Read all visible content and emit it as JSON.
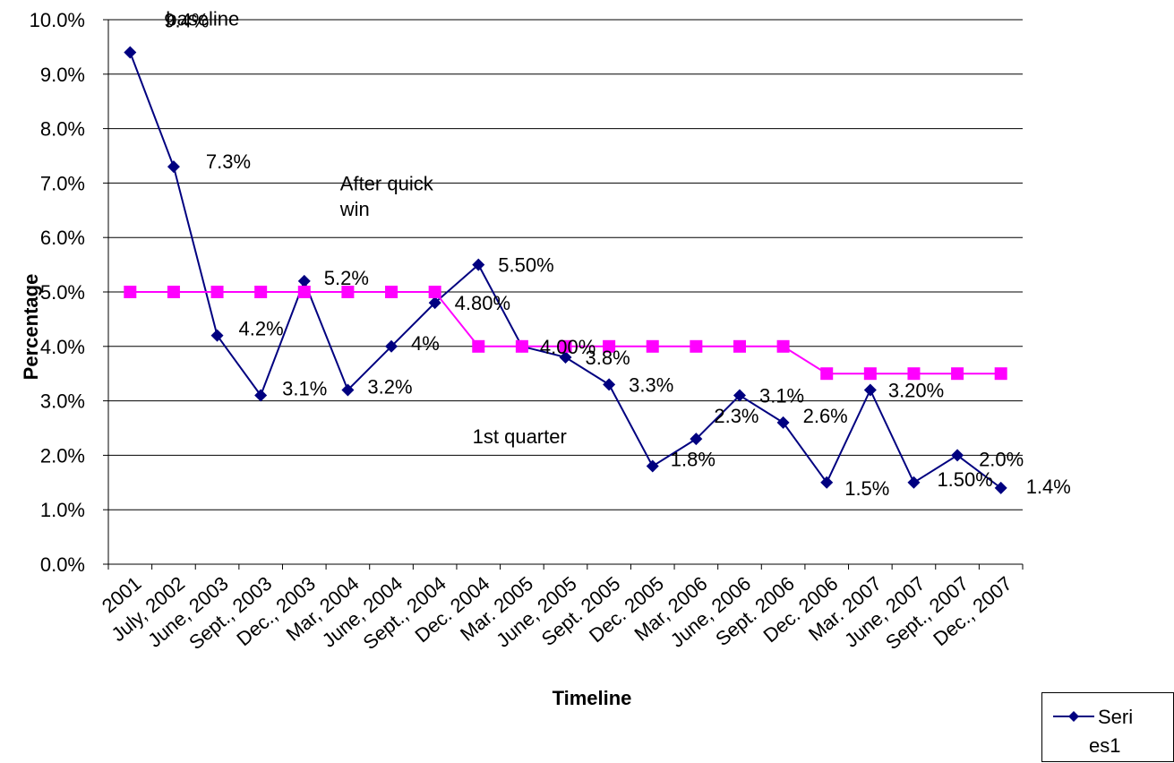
{
  "chart_data": {
    "type": "line",
    "xlabel": "Timeline",
    "ylabel": "Percentage",
    "ylim": [
      0,
      10
    ],
    "y_ticks": [
      "0.0%",
      "1.0%",
      "2.0%",
      "3.0%",
      "4.0%",
      "5.0%",
      "6.0%",
      "7.0%",
      "8.0%",
      "9.0%",
      "10.0%"
    ],
    "y_ticks_rendered": [
      "0.0%",
      "1.0%",
      "2.0%",
      "3.0%",
      "4.0%",
      "5.0%",
      "6.0%",
      "7.0%",
      "8.0%",
      "9.0%",
      "10.0%"
    ],
    "grid": true,
    "categories": [
      "2001",
      "July, 2002",
      "June, 2003",
      "Sept., 2003",
      "Dec., 2003",
      "Mar, 2004",
      "June, 2004",
      "Sept., 2004",
      "Dec. 2004",
      "Mar. 2005",
      "June, 2005",
      "Sept. 2005",
      "Dec. 2005",
      "Mar, 2006",
      "June, 2006",
      "Sept. 2006",
      "Dec. 2006",
      "Mar. 2007",
      "June, 2007",
      "Sept., 2007",
      "Dec., 2007"
    ],
    "series": [
      {
        "name": "Series1",
        "color": "#000080",
        "marker": "diamond",
        "values": [
          9.4,
          7.3,
          4.2,
          3.1,
          5.2,
          3.2,
          4.0,
          4.8,
          5.5,
          4.0,
          3.8,
          3.3,
          1.8,
          2.3,
          3.1,
          2.6,
          1.5,
          3.2,
          1.5,
          2.0,
          1.4
        ],
        "labels": [
          "9.4%",
          "7.3%",
          "4.2%",
          "3.1%",
          "5.2%",
          "3.2%",
          "4%",
          "4.80%",
          "5.50%",
          "4.00%",
          "3.8%",
          "3.3%",
          "1.8%",
          "2.3%",
          "3.1%",
          "2.6%",
          "1.5%",
          "3.20%",
          "1.50%",
          "2.0%",
          "1.4%"
        ]
      },
      {
        "color": "#ff00ff",
        "marker": "square",
        "values": [
          5.0,
          5.0,
          5.0,
          5.0,
          5.0,
          5.0,
          5.0,
          5.0,
          4.0,
          4.0,
          4.0,
          4.0,
          4.0,
          4.0,
          4.0,
          4.0,
          3.5,
          3.5,
          3.5,
          3.5,
          3.5
        ]
      }
    ],
    "annotations": [
      "baseline",
      "After quick win",
      "1st quarter"
    ],
    "legend": {
      "placement": "bottom-right",
      "entries": [
        "Series1"
      ],
      "display_lines": [
        "Seri",
        "es1"
      ]
    }
  }
}
